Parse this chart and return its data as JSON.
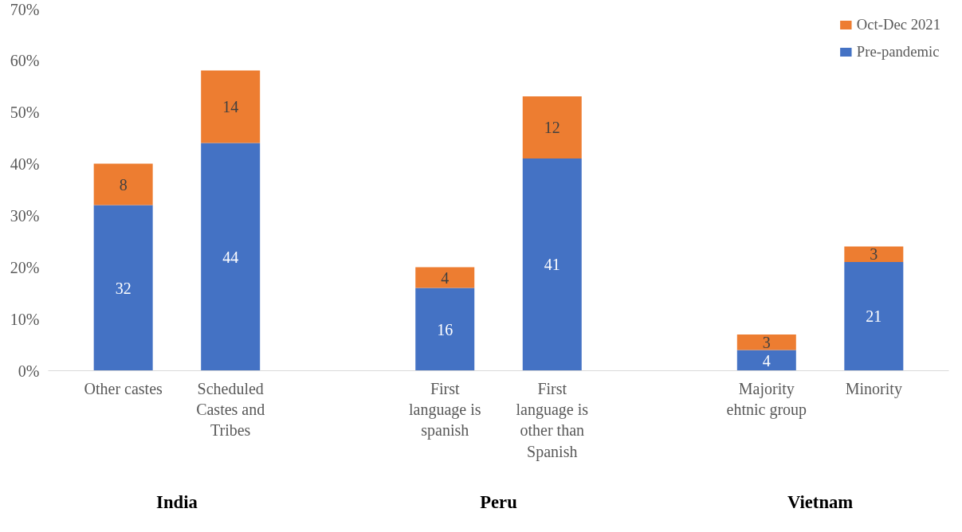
{
  "chart_data": {
    "type": "bar",
    "stacked": true,
    "categories": [
      "Other castes",
      "Scheduled Castes and Tribes",
      null,
      "First language is spanish",
      "First language is other than Spanish",
      null,
      "Majority ehtnic group",
      "Minority"
    ],
    "series": [
      {
        "name": "Pre-pandemic",
        "color": "#4472c4",
        "values": [
          32,
          44,
          null,
          16,
          41,
          null,
          4,
          21
        ]
      },
      {
        "name": "Oct-Dec 2021",
        "color": "#ed7d31",
        "values": [
          8,
          14,
          null,
          4,
          12,
          null,
          3,
          3
        ]
      }
    ],
    "ylim": [
      0,
      70
    ],
    "yticks": [
      {
        "value": 0,
        "label": "0%"
      },
      {
        "value": 10,
        "label": "10%"
      },
      {
        "value": 20,
        "label": "20%"
      },
      {
        "value": 30,
        "label": "30%"
      },
      {
        "value": 40,
        "label": "40%"
      },
      {
        "value": 50,
        "label": "50%"
      },
      {
        "value": 60,
        "label": "60%"
      },
      {
        "value": 70,
        "label": "70%"
      }
    ],
    "data_labels": true,
    "grid": false,
    "legend": "top right",
    "annotations": [
      "India",
      "Peru",
      "Vietnam"
    ]
  }
}
